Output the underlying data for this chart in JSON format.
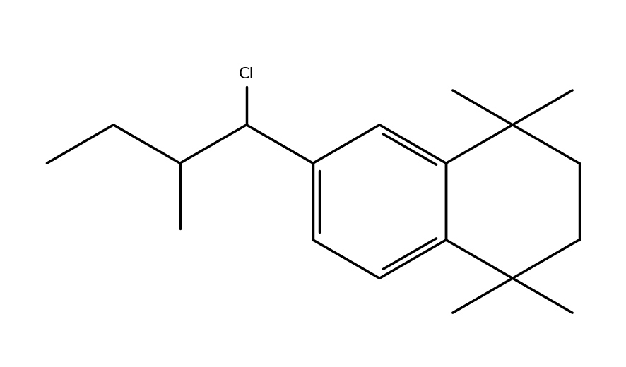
{
  "background_color": "#ffffff",
  "line_color": "#000000",
  "line_width": 2.5,
  "font_size_label": 16,
  "figsize": [
    8.86,
    5.2
  ],
  "dpi": 100
}
